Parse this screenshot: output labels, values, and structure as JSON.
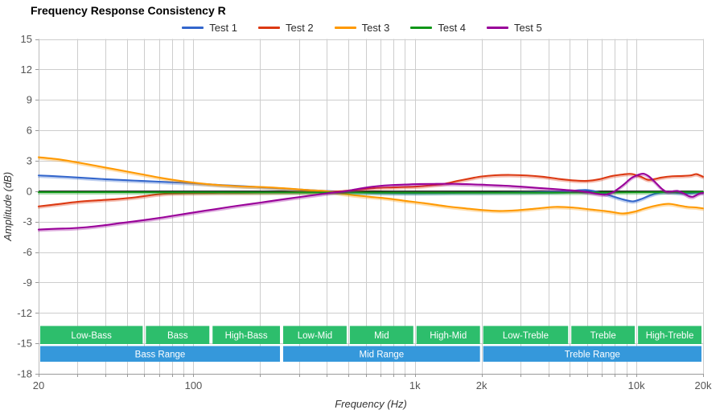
{
  "page": {
    "title": "Frequency Response Consistency R"
  },
  "chart_data": {
    "type": "line",
    "title": "Frequency Response Consistency R",
    "xlabel": "Frequency (Hz)",
    "ylabel": "Amplitude (dB)",
    "x_scale": "log",
    "xlim": [
      20,
      20000
    ],
    "ylim": [
      -18,
      15
    ],
    "grid": true,
    "legend_position": "top",
    "zero_line": true,
    "y_ticks": [
      15,
      12,
      9,
      6,
      3,
      0,
      -3,
      -6,
      -9,
      -12,
      -15,
      -18
    ],
    "x_ticks": [
      {
        "f": 20,
        "label": "20"
      },
      {
        "f": 100,
        "label": "100"
      },
      {
        "f": 1000,
        "label": "1k"
      },
      {
        "f": 2000,
        "label": "2k"
      },
      {
        "f": 10000,
        "label": "10k"
      },
      {
        "f": 20000,
        "label": "20k"
      }
    ],
    "colors": {
      "grid": "#cdcdcd",
      "axis": "#999999",
      "zero_line": "#141414",
      "tick_text": "#555555",
      "axis_title_text": "#333333",
      "band_text": "#ffffff",
      "sub_band": "#2dbe6c",
      "range_band": "#3598db"
    },
    "series": [
      {
        "name": "Test 1",
        "color": "#3366cc",
        "points": [
          [
            20,
            1.55
          ],
          [
            25,
            1.45
          ],
          [
            30,
            1.35
          ],
          [
            40,
            1.18
          ],
          [
            50,
            1.08
          ],
          [
            60,
            1.0
          ],
          [
            80,
            0.88
          ],
          [
            100,
            0.78
          ],
          [
            130,
            0.62
          ],
          [
            160,
            0.52
          ],
          [
            200,
            0.4
          ],
          [
            250,
            0.28
          ],
          [
            300,
            0.17
          ],
          [
            350,
            0.08
          ],
          [
            400,
            0.02
          ],
          [
            450,
            -0.04
          ],
          [
            500,
            -0.1
          ],
          [
            600,
            -0.15
          ],
          [
            700,
            -0.18
          ],
          [
            850,
            -0.2
          ],
          [
            1000,
            -0.2
          ],
          [
            1300,
            -0.18
          ],
          [
            1600,
            -0.16
          ],
          [
            2000,
            -0.15
          ],
          [
            2500,
            -0.13
          ],
          [
            3000,
            -0.12
          ],
          [
            4000,
            -0.08
          ],
          [
            4700,
            -0.03
          ],
          [
            5400,
            0.08
          ],
          [
            5900,
            0.12
          ],
          [
            6400,
            0.02
          ],
          [
            6900,
            -0.15
          ],
          [
            7600,
            -0.42
          ],
          [
            8400,
            -0.72
          ],
          [
            9100,
            -0.92
          ],
          [
            9700,
            -1.0
          ],
          [
            10500,
            -0.78
          ],
          [
            11500,
            -0.42
          ],
          [
            12500,
            -0.18
          ],
          [
            13500,
            -0.1
          ],
          [
            14500,
            -0.12
          ],
          [
            15500,
            -0.18
          ],
          [
            17000,
            -0.22
          ],
          [
            18500,
            -0.15
          ],
          [
            20000,
            -0.12
          ]
        ]
      },
      {
        "name": "Test 2",
        "color": "#dc3912",
        "points": [
          [
            20,
            -1.5
          ],
          [
            24,
            -1.3
          ],
          [
            30,
            -1.05
          ],
          [
            37,
            -0.9
          ],
          [
            45,
            -0.78
          ],
          [
            55,
            -0.6
          ],
          [
            65,
            -0.38
          ],
          [
            75,
            -0.25
          ],
          [
            90,
            -0.2
          ],
          [
            110,
            -0.18
          ],
          [
            140,
            -0.16
          ],
          [
            180,
            -0.15
          ],
          [
            230,
            -0.13
          ],
          [
            300,
            -0.12
          ],
          [
            370,
            -0.09
          ],
          [
            450,
            -0.02
          ],
          [
            520,
            0.1
          ],
          [
            650,
            0.3
          ],
          [
            800,
            0.38
          ],
          [
            1000,
            0.45
          ],
          [
            1150,
            0.55
          ],
          [
            1350,
            0.72
          ],
          [
            1550,
            1.0
          ],
          [
            1800,
            1.28
          ],
          [
            2000,
            1.45
          ],
          [
            2300,
            1.57
          ],
          [
            2700,
            1.6
          ],
          [
            3200,
            1.55
          ],
          [
            3800,
            1.42
          ],
          [
            4500,
            1.2
          ],
          [
            5300,
            1.05
          ],
          [
            6000,
            1.02
          ],
          [
            6800,
            1.18
          ],
          [
            7700,
            1.48
          ],
          [
            8700,
            1.65
          ],
          [
            9500,
            1.7
          ],
          [
            10400,
            1.45
          ],
          [
            11300,
            1.12
          ],
          [
            12100,
            1.2
          ],
          [
            13000,
            1.35
          ],
          [
            14500,
            1.47
          ],
          [
            16000,
            1.5
          ],
          [
            17500,
            1.55
          ],
          [
            18600,
            1.68
          ],
          [
            19400,
            1.55
          ],
          [
            20000,
            1.42
          ]
        ]
      },
      {
        "name": "Test 3",
        "color": "#ff9900",
        "points": [
          [
            20,
            3.35
          ],
          [
            25,
            3.12
          ],
          [
            31,
            2.78
          ],
          [
            38,
            2.42
          ],
          [
            47,
            2.05
          ],
          [
            58,
            1.68
          ],
          [
            71,
            1.32
          ],
          [
            88,
            1.0
          ],
          [
            108,
            0.76
          ],
          [
            135,
            0.58
          ],
          [
            165,
            0.47
          ],
          [
            210,
            0.4
          ],
          [
            260,
            0.28
          ],
          [
            320,
            0.13
          ],
          [
            400,
            0.0
          ],
          [
            470,
            -0.25
          ],
          [
            560,
            -0.45
          ],
          [
            660,
            -0.6
          ],
          [
            760,
            -0.73
          ],
          [
            900,
            -0.95
          ],
          [
            1100,
            -1.18
          ],
          [
            1400,
            -1.5
          ],
          [
            1700,
            -1.7
          ],
          [
            2000,
            -1.85
          ],
          [
            2400,
            -1.95
          ],
          [
            2900,
            -1.88
          ],
          [
            3500,
            -1.72
          ],
          [
            4300,
            -1.55
          ],
          [
            5200,
            -1.62
          ],
          [
            6200,
            -1.8
          ],
          [
            7200,
            -1.95
          ],
          [
            8000,
            -2.1
          ],
          [
            8700,
            -2.2
          ],
          [
            9800,
            -2.02
          ],
          [
            11000,
            -1.68
          ],
          [
            12500,
            -1.38
          ],
          [
            14000,
            -1.25
          ],
          [
            15500,
            -1.4
          ],
          [
            17000,
            -1.55
          ],
          [
            18500,
            -1.6
          ],
          [
            20000,
            -1.7
          ]
        ]
      },
      {
        "name": "Test 4",
        "color": "#109618",
        "points": [
          [
            20,
            -0.1
          ],
          [
            50,
            -0.1
          ],
          [
            100,
            -0.11
          ],
          [
            200,
            -0.12
          ],
          [
            400,
            -0.13
          ],
          [
            700,
            -0.14
          ],
          [
            1000,
            -0.15
          ],
          [
            2000,
            -0.15
          ],
          [
            3000,
            -0.15
          ],
          [
            5000,
            -0.14
          ],
          [
            7000,
            -0.13
          ],
          [
            9000,
            -0.12
          ],
          [
            12000,
            -0.1
          ],
          [
            15000,
            -0.1
          ],
          [
            18000,
            -0.08
          ],
          [
            20000,
            -0.06
          ]
        ]
      },
      {
        "name": "Test 5",
        "color": "#990099",
        "points": [
          [
            20,
            -3.78
          ],
          [
            24,
            -3.7
          ],
          [
            28,
            -3.66
          ],
          [
            33,
            -3.55
          ],
          [
            40,
            -3.35
          ],
          [
            47,
            -3.14
          ],
          [
            53,
            -3.0
          ],
          [
            62,
            -2.8
          ],
          [
            72,
            -2.6
          ],
          [
            82,
            -2.4
          ],
          [
            95,
            -2.18
          ],
          [
            110,
            -1.96
          ],
          [
            125,
            -1.78
          ],
          [
            145,
            -1.56
          ],
          [
            165,
            -1.38
          ],
          [
            190,
            -1.2
          ],
          [
            215,
            -1.03
          ],
          [
            250,
            -0.82
          ],
          [
            285,
            -0.65
          ],
          [
            330,
            -0.46
          ],
          [
            375,
            -0.3
          ],
          [
            430,
            -0.13
          ],
          [
            480,
            -0.02
          ],
          [
            540,
            0.18
          ],
          [
            600,
            0.35
          ],
          [
            680,
            0.5
          ],
          [
            780,
            0.6
          ],
          [
            900,
            0.65
          ],
          [
            1050,
            0.7
          ],
          [
            1250,
            0.72
          ],
          [
            1500,
            0.72
          ],
          [
            1800,
            0.68
          ],
          [
            2100,
            0.62
          ],
          [
            2500,
            0.55
          ],
          [
            3000,
            0.45
          ],
          [
            3600,
            0.32
          ],
          [
            4200,
            0.22
          ],
          [
            4800,
            0.12
          ],
          [
            5500,
            0.02
          ],
          [
            6200,
            -0.15
          ],
          [
            6800,
            -0.3
          ],
          [
            7300,
            -0.33
          ],
          [
            7900,
            -0.05
          ],
          [
            8700,
            0.6
          ],
          [
            9500,
            1.3
          ],
          [
            10300,
            1.65
          ],
          [
            10800,
            1.72
          ],
          [
            11400,
            1.45
          ],
          [
            12200,
            0.85
          ],
          [
            13000,
            0.25
          ],
          [
            13700,
            -0.05
          ],
          [
            14500,
            -0.02
          ],
          [
            15300,
            0.03
          ],
          [
            16300,
            -0.2
          ],
          [
            17300,
            -0.5
          ],
          [
            18000,
            -0.55
          ],
          [
            18800,
            -0.35
          ],
          [
            19500,
            -0.2
          ],
          [
            20000,
            -0.18
          ]
        ]
      }
    ],
    "frequency_bands": {
      "sub": [
        {
          "label": "Low-Bass",
          "from": 20,
          "to": 60
        },
        {
          "label": "Bass",
          "from": 60,
          "to": 120
        },
        {
          "label": "High-Bass",
          "from": 120,
          "to": 250
        },
        {
          "label": "Low-Mid",
          "from": 250,
          "to": 500
        },
        {
          "label": "Mid",
          "from": 500,
          "to": 1000
        },
        {
          "label": "High-Mid",
          "from": 1000,
          "to": 2000
        },
        {
          "label": "Low-Treble",
          "from": 2000,
          "to": 5000
        },
        {
          "label": "Treble",
          "from": 5000,
          "to": 10000
        },
        {
          "label": "High-Treble",
          "from": 10000,
          "to": 20000
        }
      ],
      "ranges": [
        {
          "label": "Bass Range",
          "from": 20,
          "to": 250
        },
        {
          "label": "Mid Range",
          "from": 250,
          "to": 2000
        },
        {
          "label": "Treble Range",
          "from": 2000,
          "to": 20000
        }
      ]
    }
  }
}
